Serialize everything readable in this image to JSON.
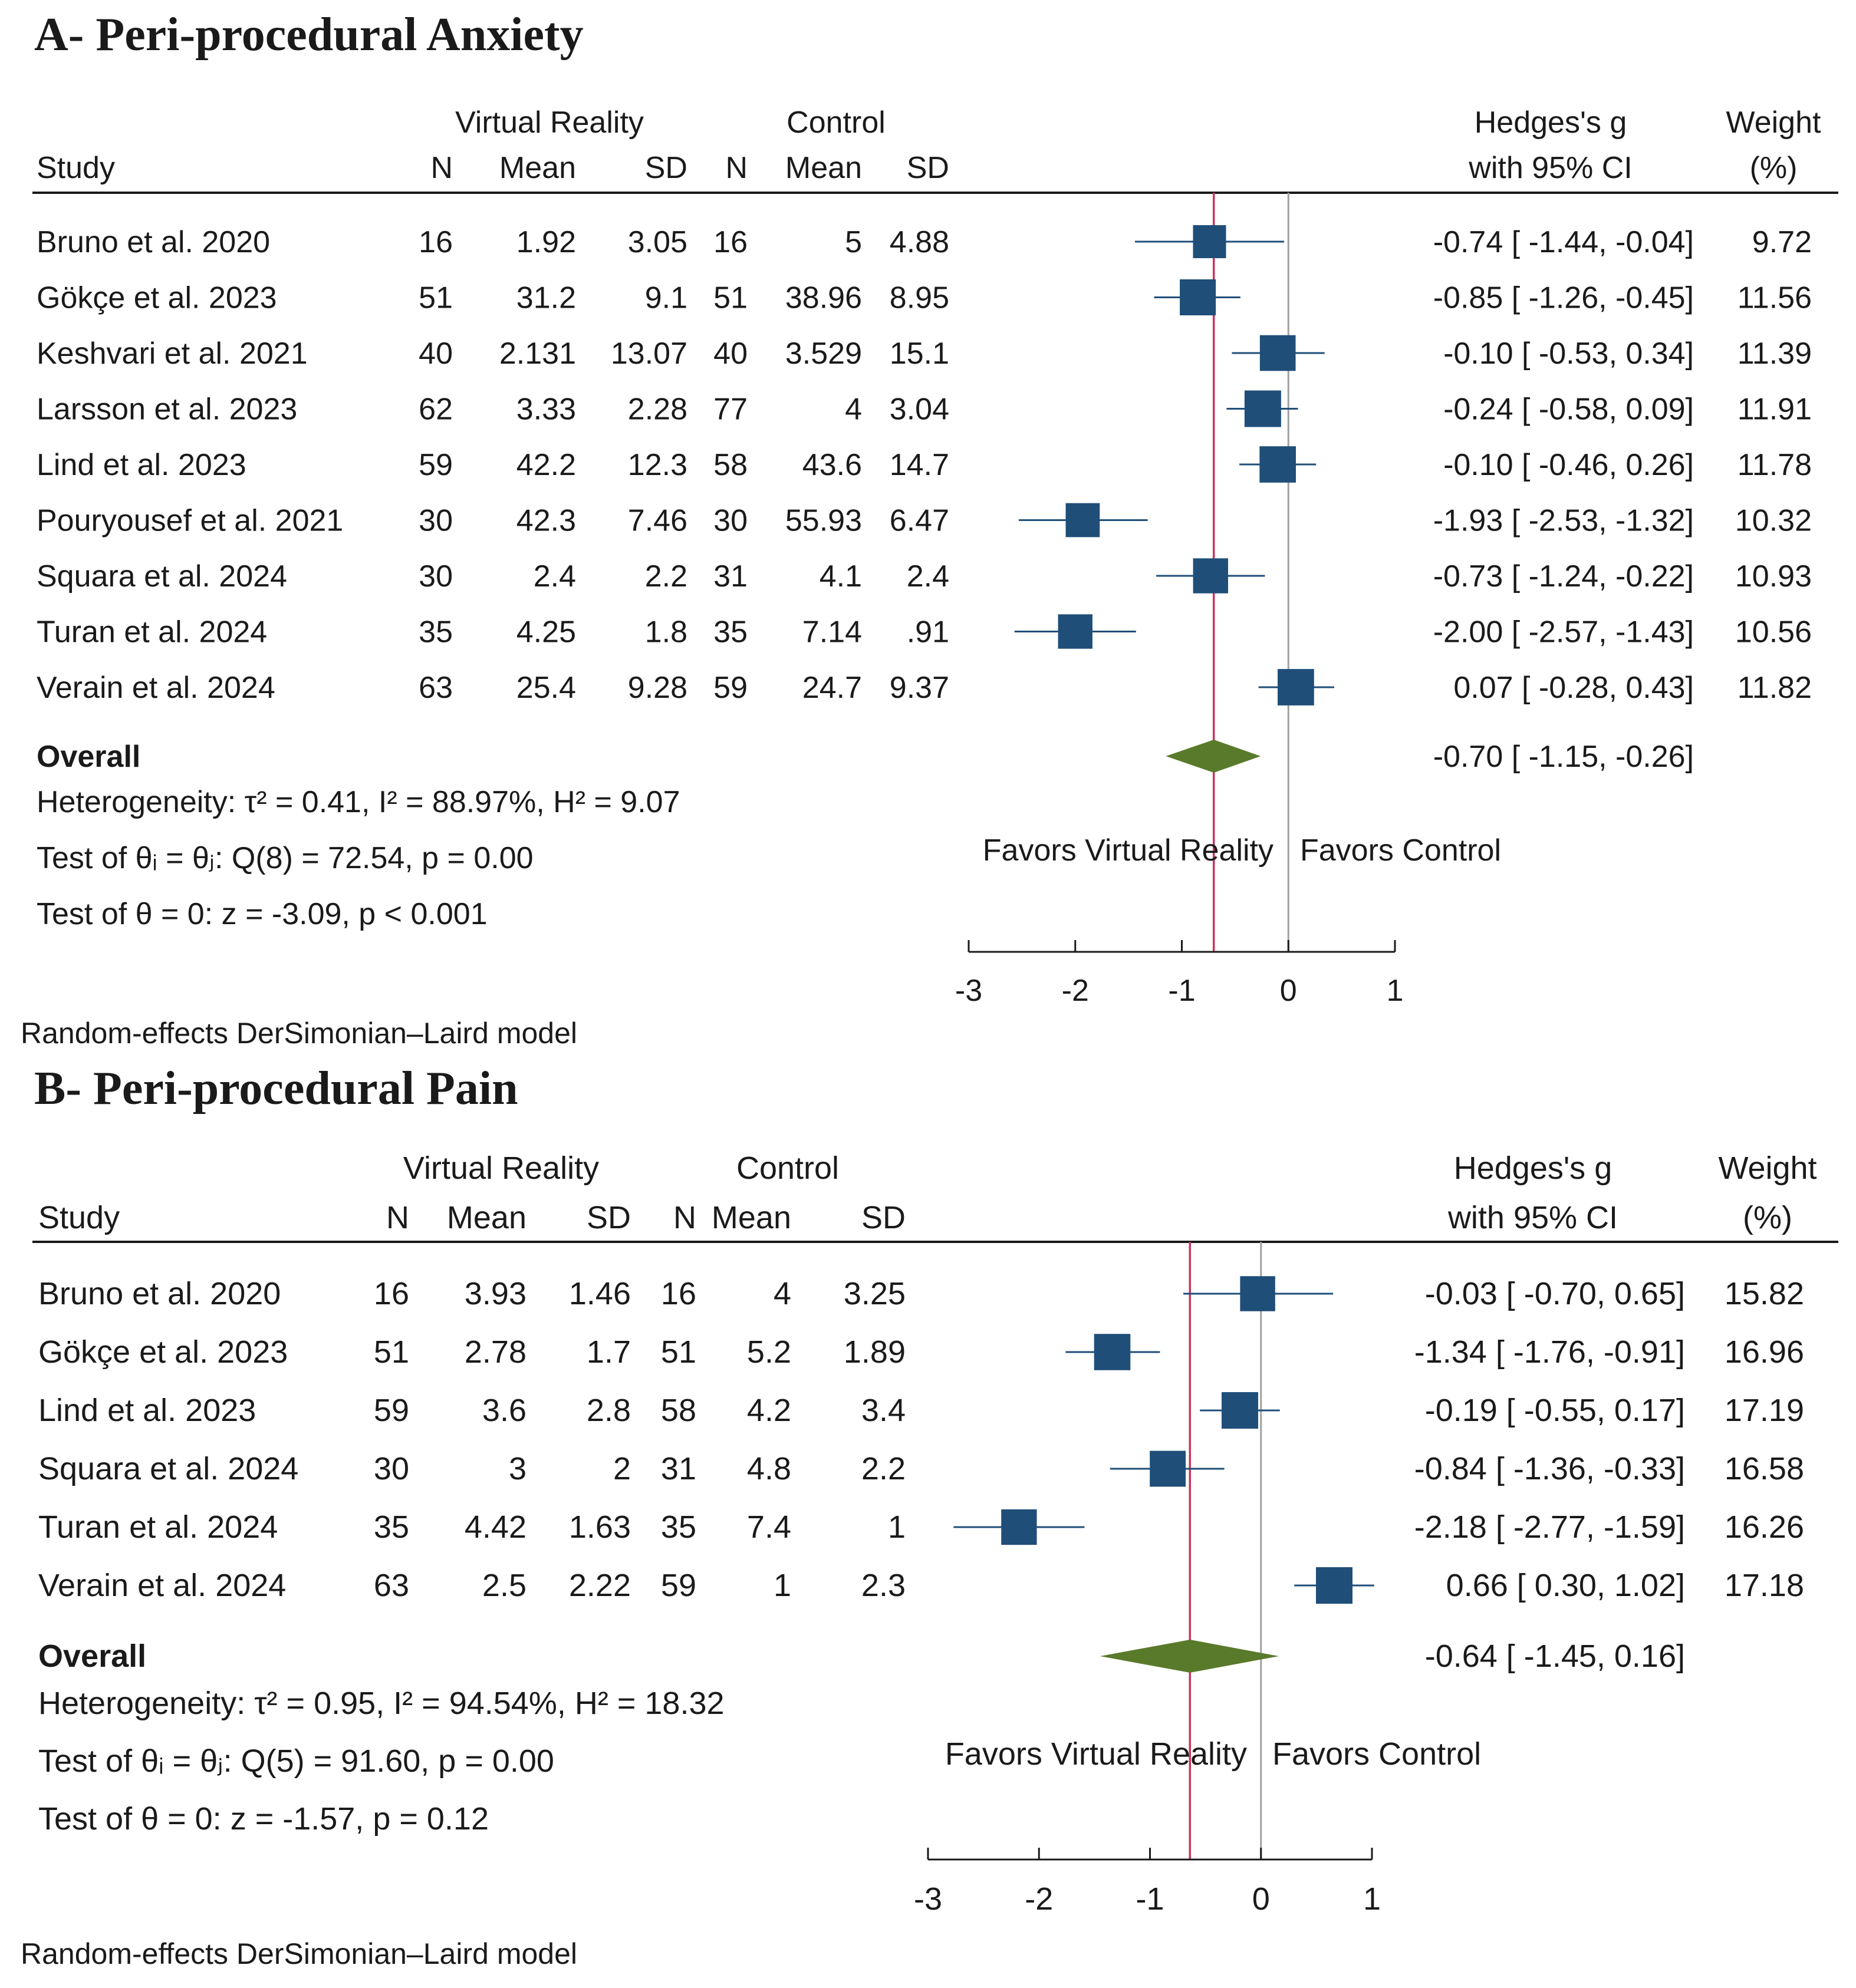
{
  "chart_data": [
    {
      "type": "forest",
      "title": "A- Peri-procedural Anxiety",
      "headers": {
        "group1": "Virtual Reality",
        "group2": "Control",
        "study": "Study",
        "n": "N",
        "mean": "Mean",
        "sd": "SD",
        "effect_line1": "Hedges's g",
        "effect_line2": "with 95% CI",
        "weight_line1": "Weight",
        "weight_line2": "(%)"
      },
      "studies": [
        {
          "study": "Bruno et al. 2020",
          "n1": "16",
          "mean1": "1.92",
          "sd1": "3.05",
          "n2": "16",
          "mean2": "5",
          "sd2": "4.88",
          "ci_text": "-0.74 [ -1.44,  -0.04]",
          "weight": "9.72",
          "g": -0.74,
          "lo": -1.44,
          "hi": -0.04,
          "w": 9.72
        },
        {
          "study": "Gökçe et al. 2023",
          "n1": "51",
          "mean1": "31.2",
          "sd1": "9.1",
          "n2": "51",
          "mean2": "38.96",
          "sd2": "8.95",
          "ci_text": "-0.85 [ -1.26,  -0.45]",
          "weight": "11.56",
          "g": -0.85,
          "lo": -1.26,
          "hi": -0.45,
          "w": 11.56
        },
        {
          "study": "Keshvari et al. 2021",
          "n1": "40",
          "mean1": "2.131",
          "sd1": "13.07",
          "n2": "40",
          "mean2": "3.529",
          "sd2": "15.1",
          "ci_text": "-0.10 [ -0.53,   0.34]",
          "weight": "11.39",
          "g": -0.1,
          "lo": -0.53,
          "hi": 0.34,
          "w": 11.39
        },
        {
          "study": "Larsson et al. 2023",
          "n1": "62",
          "mean1": "3.33",
          "sd1": "2.28",
          "n2": "77",
          "mean2": "4",
          "sd2": "3.04",
          "ci_text": "-0.24 [ -0.58,   0.09]",
          "weight": "11.91",
          "g": -0.24,
          "lo": -0.58,
          "hi": 0.09,
          "w": 11.91
        },
        {
          "study": "Lind et al. 2023",
          "n1": "59",
          "mean1": "42.2",
          "sd1": "12.3",
          "n2": "58",
          "mean2": "43.6",
          "sd2": "14.7",
          "ci_text": "-0.10 [ -0.46,   0.26]",
          "weight": "11.78",
          "g": -0.1,
          "lo": -0.46,
          "hi": 0.26,
          "w": 11.78
        },
        {
          "study": "Pouryousef et al. 2021",
          "n1": "30",
          "mean1": "42.3",
          "sd1": "7.46",
          "n2": "30",
          "mean2": "55.93",
          "sd2": "6.47",
          "ci_text": "-1.93 [ -2.53,  -1.32]",
          "weight": "10.32",
          "g": -1.93,
          "lo": -2.53,
          "hi": -1.32,
          "w": 10.32
        },
        {
          "study": "Squara et al. 2024",
          "n1": "30",
          "mean1": "2.4",
          "sd1": "2.2",
          "n2": "31",
          "mean2": "4.1",
          "sd2": "2.4",
          "ci_text": "-0.73 [ -1.24,  -0.22]",
          "weight": "10.93",
          "g": -0.73,
          "lo": -1.24,
          "hi": -0.22,
          "w": 10.93
        },
        {
          "study": "Turan et al. 2024",
          "n1": "35",
          "mean1": "4.25",
          "sd1": "1.8",
          "n2": "35",
          "mean2": "7.14",
          "sd2": ".91",
          "ci_text": "-2.00 [ -2.57,  -1.43]",
          "weight": "10.56",
          "g": -2.0,
          "lo": -2.57,
          "hi": -1.43,
          "w": 10.56
        },
        {
          "study": "Verain et al. 2024",
          "n1": "63",
          "mean1": "25.4",
          "sd1": "9.28",
          "n2": "59",
          "mean2": "24.7",
          "sd2": "9.37",
          "ci_text": "0.07 [ -0.28,   0.43]",
          "weight": "11.82",
          "g": 0.07,
          "lo": -0.28,
          "hi": 0.43,
          "w": 11.82
        }
      ],
      "overall": {
        "label": "Overall",
        "ci_text": "-0.70 [ -1.15,  -0.26]",
        "g": -0.7,
        "lo": -1.15,
        "hi": -0.26
      },
      "stats": [
        "Heterogeneity: τ² = 0.41, I² = 88.97%, H² = 9.07",
        "Test of θᵢ = θⱼ: Q(8) = 72.54, p = 0.00",
        "Test of θ = 0: z = -3.09, p < 0.001"
      ],
      "favors_left": "Favors Virtual Reality",
      "favors_right": "Favors Control",
      "xticks": [
        -3,
        -2,
        -1,
        0,
        1
      ],
      "xlim": [
        -3,
        1
      ],
      "footnote": "Random-effects DerSimonian–Laird model"
    },
    {
      "type": "forest",
      "title": "B- Peri-procedural Pain",
      "headers": {
        "group1": "Virtual Reality",
        "group2": "Control",
        "study": "Study",
        "n": "N",
        "mean": "Mean",
        "sd": "SD",
        "effect_line1": "Hedges's g",
        "effect_line2": "with 95% CI",
        "weight_line1": "Weight",
        "weight_line2": "(%)"
      },
      "studies": [
        {
          "study": "Bruno et al. 2020",
          "n1": "16",
          "mean1": "3.93",
          "sd1": "1.46",
          "n2": "16",
          "mean2": "4",
          "sd2": "3.25",
          "ci_text": "-0.03 [ -0.70,   0.65]",
          "weight": "15.82",
          "g": -0.03,
          "lo": -0.7,
          "hi": 0.65,
          "w": 15.82
        },
        {
          "study": "Gökçe et al. 2023",
          "n1": "51",
          "mean1": "2.78",
          "sd1": "1.7",
          "n2": "51",
          "mean2": "5.2",
          "sd2": "1.89",
          "ci_text": "-1.34 [ -1.76,  -0.91]",
          "weight": "16.96",
          "g": -1.34,
          "lo": -1.76,
          "hi": -0.91,
          "w": 16.96
        },
        {
          "study": "Lind et al. 2023",
          "n1": "59",
          "mean1": "3.6",
          "sd1": "2.8",
          "n2": "58",
          "mean2": "4.2",
          "sd2": "3.4",
          "ci_text": "-0.19 [ -0.55,   0.17]",
          "weight": "17.19",
          "g": -0.19,
          "lo": -0.55,
          "hi": 0.17,
          "w": 17.19
        },
        {
          "study": "Squara et al. 2024",
          "n1": "30",
          "mean1": "3",
          "sd1": "2",
          "n2": "31",
          "mean2": "4.8",
          "sd2": "2.2",
          "ci_text": "-0.84 [ -1.36,  -0.33]",
          "weight": "16.58",
          "g": -0.84,
          "lo": -1.36,
          "hi": -0.33,
          "w": 16.58
        },
        {
          "study": "Turan et al. 2024",
          "n1": "35",
          "mean1": "4.42",
          "sd1": "1.63",
          "n2": "35",
          "mean2": "7.4",
          "sd2": "1",
          "ci_text": "-2.18 [ -2.77,  -1.59]",
          "weight": "16.26",
          "g": -2.18,
          "lo": -2.77,
          "hi": -1.59,
          "w": 16.26
        },
        {
          "study": "Verain et al. 2024",
          "n1": "63",
          "mean1": "2.5",
          "sd1": "2.22",
          "n2": "59",
          "mean2": "1",
          "sd2": "2.3",
          "ci_text": "0.66 [  0.30,   1.02]",
          "weight": "17.18",
          "g": 0.66,
          "lo": 0.3,
          "hi": 1.02,
          "w": 17.18
        }
      ],
      "overall": {
        "label": "Overall",
        "ci_text": "-0.64 [ -1.45,   0.16]",
        "g": -0.64,
        "lo": -1.45,
        "hi": 0.16
      },
      "stats": [
        "Heterogeneity: τ² = 0.95, I² = 94.54%, H² = 18.32",
        "Test of θᵢ = θⱼ: Q(5) = 91.60, p = 0.00",
        "Test of θ = 0: z = -1.57, p = 0.12"
      ],
      "favors_left": "Favors Virtual Reality",
      "favors_right": "Favors Control",
      "xticks": [
        -3,
        -2,
        -1,
        0,
        1
      ],
      "xlim": [
        -3,
        1
      ],
      "footnote": "Random-effects DerSimonian–Laird model"
    }
  ],
  "colors": {
    "marker": "#1F4E79",
    "diamond": "#5A7A2B",
    "overall_line": "#C8355E",
    "null_line": "#A0A0A0",
    "text": "#1a1a1a"
  }
}
